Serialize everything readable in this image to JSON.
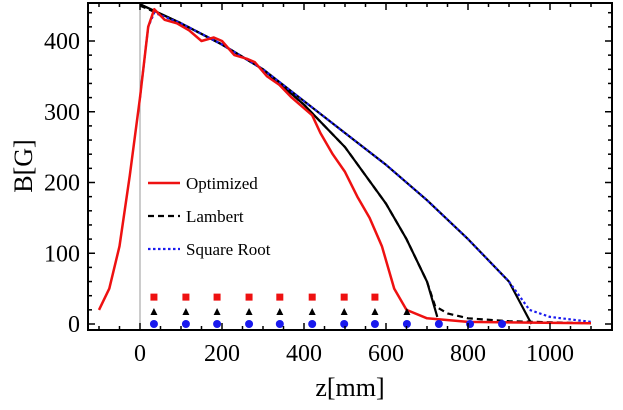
{
  "chart_data": {
    "type": "line",
    "title": "",
    "xlabel": "z[mm]",
    "ylabel": "B[G]",
    "xlim": [
      -127,
      1150
    ],
    "ylim": [
      -8,
      454
    ],
    "xticks": [
      0,
      200,
      400,
      600,
      800,
      1000
    ],
    "yticks": [
      0,
      100,
      200,
      300,
      400
    ],
    "grid": false,
    "legend_position": "center-left",
    "series": [
      {
        "name": "Optimized",
        "color": "#ee1111",
        "style": "solid",
        "x": [
          -100,
          -75,
          -50,
          -25,
          0,
          20,
          35,
          60,
          90,
          120,
          150,
          180,
          200,
          230,
          260,
          280,
          310,
          340,
          370,
          400,
          420,
          440,
          470,
          500,
          530,
          560,
          590,
          620,
          650,
          700,
          800,
          1100
        ],
        "y": [
          20,
          50,
          110,
          210,
          320,
          420,
          445,
          430,
          425,
          415,
          400,
          405,
          400,
          380,
          375,
          370,
          350,
          338,
          320,
          305,
          295,
          270,
          240,
          215,
          180,
          150,
          110,
          50,
          20,
          8,
          3,
          1
        ]
      },
      {
        "name": "Lambert",
        "color": "#000000",
        "style": "dashed",
        "x": [
          0,
          100,
          200,
          300,
          400,
          500,
          600,
          650,
          700,
          720,
          750,
          800,
          900,
          1100
        ],
        "y": [
          450,
          425,
          395,
          360,
          310,
          250,
          170,
          120,
          60,
          25,
          15,
          8,
          4,
          1
        ]
      },
      {
        "name": "Square Root",
        "color": "#1a1aee",
        "style": "dotted",
        "x": [
          0,
          20,
          35,
          100,
          200,
          300,
          400,
          500,
          600,
          700,
          800,
          900,
          950,
          1000,
          1100
        ],
        "y": [
          320,
          420,
          440,
          425,
          395,
          360,
          315,
          270,
          225,
          175,
          120,
          60,
          20,
          10,
          3
        ]
      },
      {
        "name": "",
        "color": "#000000",
        "style": "solid",
        "x": [
          0,
          100,
          200,
          300,
          400,
          500,
          600,
          650,
          700,
          725
        ],
        "y": [
          452,
          425,
          395,
          360,
          310,
          250,
          170,
          120,
          60,
          10
        ]
      },
      {
        "name": "",
        "color": "#000000",
        "style": "solid",
        "x": [
          0,
          100,
          200,
          300,
          400,
          500,
          600,
          700,
          800,
          900,
          955
        ],
        "y": [
          452,
          425,
          395,
          360,
          315,
          270,
          225,
          175,
          120,
          60,
          0
        ]
      }
    ],
    "markers": [
      {
        "shape": "square",
        "color": "#ee1111",
        "y": 38,
        "x": [
          34,
          112,
          188,
          266,
          341,
          420,
          498,
          573
        ]
      },
      {
        "shape": "triangle",
        "color": "#000000",
        "y": 17,
        "x": [
          34,
          112,
          188,
          266,
          341,
          420,
          498,
          573,
          651
        ]
      },
      {
        "shape": "circle",
        "color": "#1a1aee",
        "y": 0,
        "x": [
          34,
          112,
          188,
          266,
          341,
          420,
          498,
          573,
          651,
          729,
          805,
          883
        ]
      }
    ]
  }
}
